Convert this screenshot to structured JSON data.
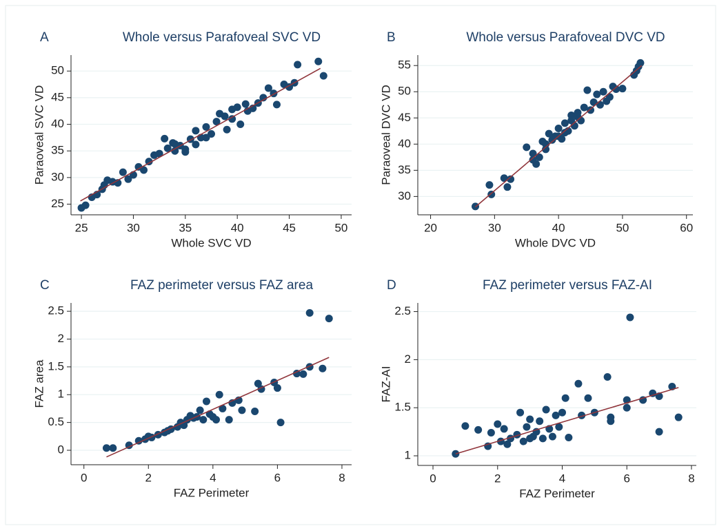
{
  "chart_data": [
    {
      "type": "scatter",
      "label": "A",
      "title": "Whole versus Parafoveal SVC VD",
      "xlabel": "Whole SVC VD",
      "ylabel": "Paraoveal SVC VD",
      "x": [
        25,
        25.4,
        26,
        26.5,
        27,
        27.2,
        27.5,
        28,
        28.5,
        29,
        29.5,
        30,
        30.5,
        31,
        31.5,
        32,
        32.5,
        33,
        33.3,
        33.8,
        34,
        34.5,
        35,
        35.5,
        36,
        36.5,
        37,
        37.5,
        38,
        38.3,
        38.8,
        39,
        39.5,
        40,
        40.3,
        40.8,
        41,
        41.5,
        42,
        42.5,
        43,
        43.5,
        43.8,
        44.5,
        45,
        45.5,
        45.8,
        47.8,
        48.3,
        36,
        37,
        35,
        34,
        39.5
      ],
      "values": [
        24.3,
        24.8,
        26.3,
        26.8,
        27.8,
        28.6,
        29.5,
        29.2,
        29,
        31,
        29.7,
        30.5,
        32,
        31.4,
        33,
        34.2,
        34.5,
        37.3,
        35.5,
        36.5,
        35,
        36,
        35.3,
        37.2,
        38.8,
        37.5,
        39.5,
        38.2,
        40.5,
        42,
        41.5,
        39,
        42.8,
        43.2,
        40,
        43.8,
        42.5,
        43,
        44,
        45,
        46.8,
        45.8,
        43.7,
        47.5,
        47,
        47.8,
        51.2,
        51.8,
        49.1,
        36.2,
        37.5,
        34.8,
        36.3,
        41
      ],
      "fit": {
        "x": [
          24.9,
          48
        ],
        "values": [
          25.6,
          50.5
        ],
        "color": "#90353b"
      },
      "color": "#1a476f",
      "xlim": [
        24,
        51
      ],
      "ylim": [
        23,
        53
      ],
      "xticks": [
        25,
        30,
        35,
        40,
        45,
        50
      ],
      "yticks": [
        25,
        30,
        35,
        40,
        45,
        50
      ],
      "grid": true
    },
    {
      "type": "scatter",
      "label": "B",
      "title": "Whole versus Parafoveal DVC VD",
      "xlabel": "Whole DVC VD",
      "ylabel": "Paraoveal DVC VD",
      "x": [
        27,
        29.2,
        29.5,
        31.5,
        32,
        32.5,
        35,
        36,
        36.5,
        37,
        37.5,
        38,
        38.5,
        39,
        39.5,
        40,
        40.5,
        41,
        41.5,
        42,
        42.5,
        43,
        43.5,
        44,
        44.5,
        45,
        45.5,
        46,
        46.5,
        47,
        47.5,
        48,
        48.5,
        49,
        50,
        51.8,
        52.2,
        52.5,
        52.8,
        40,
        41,
        42,
        43,
        38,
        36
      ],
      "values": [
        28.1,
        32.2,
        30.4,
        33.5,
        31.8,
        33.3,
        39.4,
        38.2,
        36.2,
        37.5,
        40.5,
        39,
        42,
        40.8,
        41.5,
        43,
        41,
        44,
        42.5,
        45.5,
        43.5,
        46,
        44.5,
        47,
        50.3,
        46.5,
        48,
        49.5,
        47.5,
        50,
        48.2,
        49,
        51,
        50.5,
        50.6,
        53.2,
        54,
        54.8,
        55.5,
        41.5,
        42.2,
        44.5,
        45.2,
        40,
        37
      ],
      "fit": {
        "x": [
          27,
          53
        ],
        "values": [
          28,
          55
        ],
        "color": "#90353b"
      },
      "color": "#1a476f",
      "xlim": [
        18,
        61
      ],
      "ylim": [
        26.5,
        57
      ],
      "xticks": [
        20,
        30,
        40,
        50,
        60
      ],
      "yticks": [
        30,
        35,
        40,
        45,
        50,
        55
      ],
      "grid": true
    },
    {
      "type": "scatter",
      "label": "C",
      "title": "FAZ perimeter versus FAZ area",
      "xlabel": "FAZ Perimeter",
      "ylabel": "FAZ area",
      "x": [
        0.7,
        0.9,
        1.4,
        1.7,
        1.9,
        2.1,
        2.3,
        2.5,
        2.7,
        2.9,
        3,
        3.2,
        3.3,
        3.5,
        3.6,
        3.7,
        3.8,
        3.9,
        4,
        4.1,
        4.2,
        4.3,
        4.5,
        4.6,
        4.8,
        4.9,
        5.3,
        5.4,
        5.5,
        5.9,
        6,
        6.1,
        6.6,
        6.8,
        7,
        7,
        7.4,
        7.6,
        2,
        2.6,
        3.1,
        3.4
      ],
      "values": [
        0.04,
        0.04,
        0.09,
        0.17,
        0.2,
        0.23,
        0.28,
        0.32,
        0.38,
        0.42,
        0.5,
        0.55,
        0.62,
        0.6,
        0.72,
        0.55,
        0.88,
        0.65,
        0.6,
        0.55,
        1,
        0.75,
        0.55,
        0.85,
        0.9,
        0.72,
        0.7,
        1.2,
        1.1,
        1.22,
        1.12,
        0.5,
        1.38,
        1.37,
        1.5,
        2.47,
        1.47,
        2.37,
        0.25,
        0.35,
        0.45,
        0.58
      ],
      "fit": {
        "x": [
          0.7,
          7.6
        ],
        "values": [
          -0.12,
          1.67
        ],
        "color": "#90353b"
      },
      "color": "#1a476f",
      "xlim": [
        -0.4,
        8.3
      ],
      "ylim": [
        -0.26,
        2.65
      ],
      "xticks": [
        0,
        2,
        4,
        6,
        8
      ],
      "yticks": [
        0,
        0.5,
        1,
        1.5,
        2,
        2.5
      ],
      "grid": true
    },
    {
      "type": "scatter",
      "label": "D",
      "title": "FAZ perimeter versus FAZ-AI",
      "xlabel": "FAZ Perimeter",
      "ylabel": "FAZ-AI",
      "x": [
        0.7,
        1,
        1.4,
        1.7,
        1.8,
        2,
        2.1,
        2.2,
        2.4,
        2.6,
        2.7,
        2.8,
        2.9,
        3,
        3.1,
        3.2,
        3.3,
        3.4,
        3.5,
        3.6,
        3.7,
        3.8,
        3.9,
        4,
        4.1,
        4.2,
        4.5,
        4.6,
        4.8,
        5,
        5.4,
        5.5,
        5.5,
        6,
        6,
        6.1,
        6.5,
        6.8,
        7,
        7,
        7.4,
        7.6,
        2.3,
        3
      ],
      "values": [
        1.02,
        1.31,
        1.27,
        1.1,
        1.24,
        1.33,
        1.15,
        1.28,
        1.18,
        1.22,
        1.45,
        1.15,
        1.3,
        1.38,
        1.2,
        1.25,
        1.36,
        1.18,
        1.48,
        1.28,
        1.2,
        1.42,
        1.3,
        1.45,
        1.6,
        1.19,
        1.75,
        1.42,
        1.6,
        1.45,
        1.82,
        1.4,
        1.36,
        1.5,
        1.58,
        2.44,
        1.58,
        1.65,
        1.25,
        1.62,
        1.72,
        1.4,
        1.12,
        1.18
      ],
      "fit": {
        "x": [
          0.7,
          7.6
        ],
        "values": [
          1.02,
          1.71
        ],
        "color": "#90353b"
      },
      "color": "#1a476f",
      "xlim": [
        -0.47,
        8.15
      ],
      "ylim": [
        0.9,
        2.59
      ],
      "xticks": [
        0,
        2,
        4,
        6,
        8
      ],
      "yticks": [
        1,
        1.5,
        2,
        2.5
      ],
      "grid": true
    }
  ]
}
